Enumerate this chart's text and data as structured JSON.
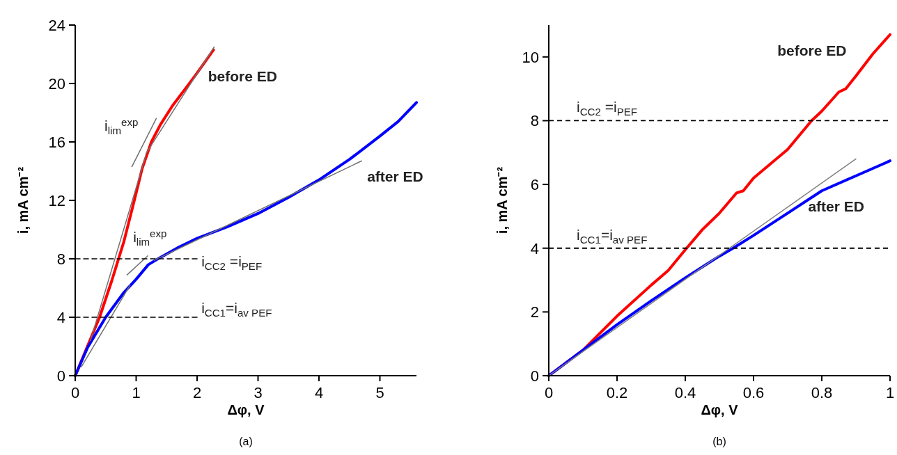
{
  "chart_data": [
    {
      "type": "line",
      "xlabel": "Δφ, V",
      "ylabel": "i, mA cm⁻²",
      "xlim": [
        0,
        5.6
      ],
      "ylim": [
        0,
        24
      ],
      "xticks": [
        0,
        1,
        2,
        3,
        4,
        5
      ],
      "yticks": [
        0,
        4,
        8,
        12,
        16,
        20,
        24
      ],
      "marker": "none",
      "series": [
        {
          "name": "before ED",
          "color": "#ff0000",
          "x": [
            0,
            0.2,
            0.4,
            0.6,
            0.8,
            0.97,
            1.1,
            1.25,
            1.4,
            1.6,
            1.8,
            1.98,
            2.1,
            2.27
          ],
          "values": [
            0,
            2,
            4,
            6.5,
            9.2,
            12,
            14.2,
            16,
            17.2,
            18.5,
            19.6,
            20.6,
            21.3,
            22.3
          ]
        },
        {
          "name": "after ED",
          "color": "#0000ff",
          "x": [
            0,
            0.2,
            0.5,
            0.8,
            1.0,
            1.2,
            1.4,
            1.7,
            2.0,
            2.5,
            3,
            3.5,
            4,
            4.5,
            5,
            5.3,
            5.6
          ],
          "values": [
            0,
            1.9,
            4,
            5.7,
            6.6,
            7.6,
            8.1,
            8.8,
            9.4,
            10.2,
            11.1,
            12.2,
            13.4,
            14.8,
            16.4,
            17.4,
            18.7
          ]
        },
        {
          "color": "#707070",
          "x": [
            0.25,
            1.16
          ],
          "values": [
            2.4,
            15.1
          ]
        },
        {
          "color": "#707070",
          "x": [
            0.93,
            1.33
          ],
          "values": [
            14.3,
            17.6
          ]
        },
        {
          "color": "#707070",
          "x": [
            1.16,
            2.28
          ],
          "values": [
            15.2,
            22.5
          ]
        },
        {
          "color": "#707070",
          "x": [
            0.1,
            0.9
          ],
          "values": [
            0.6,
            6.2
          ]
        },
        {
          "color": "#707070",
          "x": [
            0.85,
            1.19
          ],
          "values": [
            6.9,
            8.2
          ]
        },
        {
          "color": "#707070",
          "x": [
            1.3,
            4.7
          ],
          "values": [
            7.9,
            14.7
          ]
        },
        {
          "name": "i$_{CC2}$ =i$_{PEF}$",
          "color": "#000000",
          "line_style": "dashed",
          "x": [
            0,
            2
          ],
          "values": [
            8,
            8
          ]
        },
        {
          "name": "i$_{CC1}$=i$_{av PEF}$",
          "color": "#000000",
          "line_style": "dashed",
          "x": [
            0,
            2
          ],
          "values": [
            4,
            4
          ]
        }
      ],
      "annotations": [
        "i$_{lim}$$^{exp}$",
        "i$_{lim}$$^{exp}$",
        "(a)"
      ]
    },
    {
      "type": "line",
      "xlabel": "Δφ, V",
      "ylabel": "i, mA cm⁻²",
      "xlim": [
        0,
        1
      ],
      "ylim": [
        0,
        11
      ],
      "xticks": [
        0,
        0.2,
        0.4,
        0.6,
        0.8,
        1
      ],
      "yticks": [
        0,
        2,
        4,
        6,
        8,
        10
      ],
      "marker": "none",
      "series": [
        {
          "name": "before ED",
          "color": "#ff0000",
          "x": [
            0,
            0.1,
            0.2,
            0.3,
            0.35,
            0.4,
            0.45,
            0.5,
            0.55,
            0.57,
            0.6,
            0.7,
            0.77,
            0.8,
            0.85,
            0.87,
            0.9,
            0.95,
            1
          ],
          "values": [
            0,
            0.8,
            1.87,
            2.84,
            3.3,
            3.95,
            4.58,
            5.1,
            5.73,
            5.8,
            6.2,
            7.1,
            8,
            8.3,
            8.9,
            9,
            9.4,
            10.1,
            10.7
          ]
        },
        {
          "name": "after ED",
          "color": "#0000ff",
          "x": [
            0,
            0.1,
            0.2,
            0.3,
            0.4,
            0.5,
            0.54,
            0.6,
            0.7,
            0.8,
            0.9,
            1
          ],
          "values": [
            0,
            0.8,
            1.6,
            2.35,
            3.07,
            3.75,
            4,
            4.4,
            5.1,
            5.8,
            6.27,
            6.74
          ]
        },
        {
          "color": "#808080",
          "x": [
            0,
            0.9
          ],
          "values": [
            0,
            6.8
          ]
        }
      ],
      "ref_lines": [
        {
          "axis": "y",
          "value": 8,
          "label": "i$_{CC2}$ =i$_{PEF}$",
          "color": "#000000",
          "line_style": "dashed"
        },
        {
          "axis": "y",
          "value": 4,
          "label": "i$_{CC1}$=i$_{av PEF}$",
          "color": "#000000",
          "line_style": "dashed"
        }
      ],
      "annotations": [
        "(b)"
      ]
    }
  ]
}
